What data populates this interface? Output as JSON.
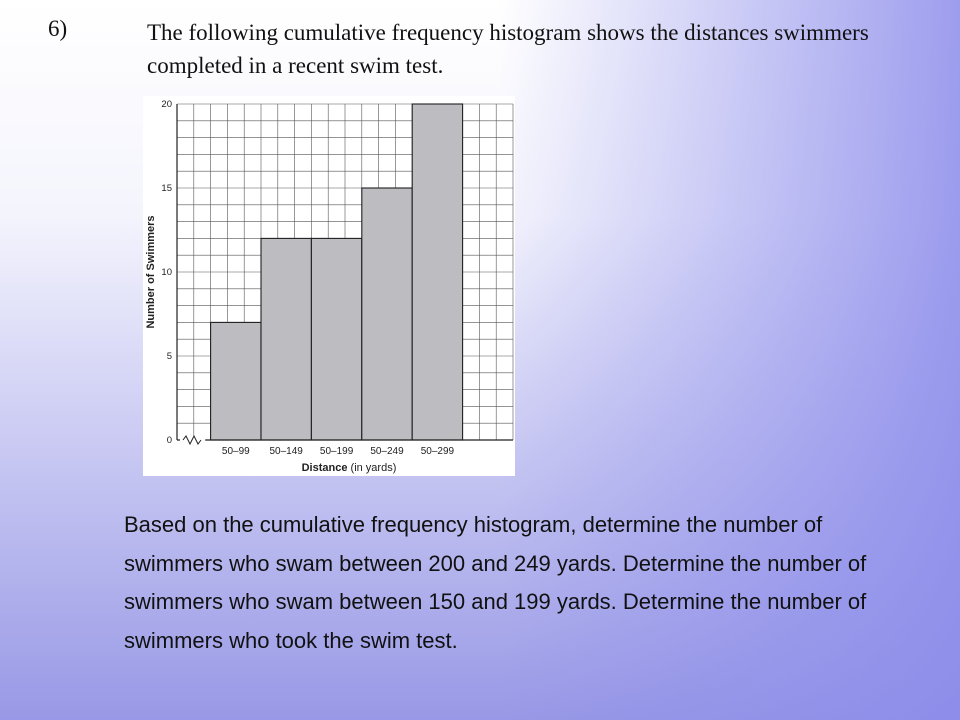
{
  "slide": {
    "number": "6)",
    "header": "The following cumulative frequency histogram shows the distances swimmers completed in a recent swim test.",
    "question": "Based on the cumulative frequency histogram, determine the number of swimmers who swam between 200 and 249 yards. Determine the number of swimmers who swam between 150 and 199 yards. Determine the number of swimmers who took the swim test."
  },
  "chart_data": {
    "type": "bar",
    "categories": [
      "50–99",
      "50–149",
      "50–199",
      "50–249",
      "50–299"
    ],
    "values": [
      7,
      12,
      12,
      15,
      20
    ],
    "xlabel_bold": "Distance",
    "xlabel_units": "(in yards)",
    "ylabel": "Number of Swimmers",
    "ylim": [
      0,
      20
    ],
    "yticks": [
      0,
      5,
      10,
      15,
      20
    ],
    "grid": true,
    "axis_break": true,
    "colors": {
      "bar": "#bdbdc1",
      "grid": "#555555",
      "panel": "#ffffff"
    }
  }
}
